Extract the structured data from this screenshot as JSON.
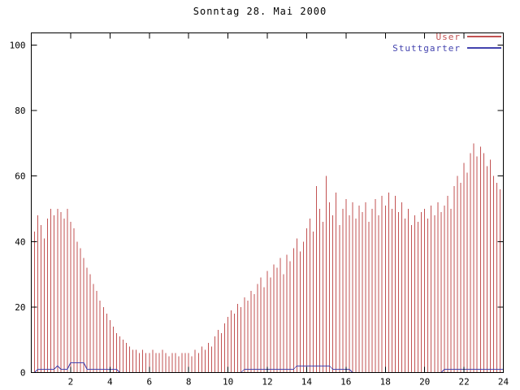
{
  "title": "Sonntag 28. Mai 2000",
  "colors": {
    "background": "#ffffff",
    "axis": "#000000",
    "user": "#c25252",
    "stuttgarter": "#4343ae"
  },
  "chart_data": {
    "type": "bar",
    "title": "Sonntag 28. Mai 2000",
    "xlabel": "",
    "ylabel": "",
    "xlim": [
      0,
      24
    ],
    "ylim": [
      0,
      100
    ],
    "x_ticks": [
      2,
      4,
      6,
      8,
      10,
      12,
      14,
      16,
      18,
      20,
      22,
      24
    ],
    "y_ticks": [
      0,
      20,
      40,
      60,
      80,
      100
    ],
    "grid": false,
    "legend_position": "top-right",
    "x_step_minutes": 10,
    "series": [
      {
        "name": "User",
        "style": "impulses",
        "color": "#c25252",
        "values": [
          50,
          43,
          48,
          45,
          41,
          47,
          50,
          48,
          50,
          49,
          47,
          50,
          46,
          44,
          40,
          38,
          35,
          32,
          30,
          27,
          25,
          22,
          20,
          18,
          16,
          14,
          12,
          11,
          10,
          9,
          8,
          7,
          7,
          6,
          7,
          6,
          6,
          7,
          6,
          6,
          7,
          6,
          5,
          6,
          6,
          5,
          6,
          6,
          6,
          5,
          7,
          6,
          8,
          7,
          9,
          8,
          11,
          13,
          12,
          15,
          17,
          19,
          18,
          21,
          20,
          23,
          22,
          25,
          24,
          27,
          29,
          26,
          31,
          29,
          33,
          32,
          35,
          30,
          36,
          34,
          38,
          41,
          37,
          40,
          44,
          47,
          43,
          57,
          50,
          46,
          60,
          52,
          48,
          55,
          45,
          50,
          53,
          48,
          52,
          47,
          51,
          49,
          52,
          46,
          50,
          53,
          48,
          54,
          51,
          55,
          50,
          54,
          49,
          52,
          47,
          50,
          45,
          48,
          46,
          49,
          50,
          47,
          51,
          48,
          52,
          49,
          51,
          54,
          50,
          57,
          60,
          58,
          64,
          61,
          67,
          70,
          66,
          69,
          67,
          63,
          65,
          60,
          58,
          56,
          54
        ]
      },
      {
        "name": "Stuttgarter",
        "style": "line",
        "color": "#4343ae",
        "values": [
          0,
          0,
          1,
          1,
          1,
          1,
          1,
          1,
          2,
          1,
          1,
          1,
          3,
          3,
          3,
          3,
          3,
          1,
          1,
          1,
          1,
          1,
          1,
          1,
          1,
          1,
          1,
          0,
          0,
          0,
          0,
          0,
          0,
          0,
          0,
          0,
          0,
          0,
          0,
          0,
          0,
          0,
          0,
          0,
          0,
          0,
          0,
          0,
          0,
          0,
          0,
          0,
          0,
          0,
          0,
          0,
          0,
          0,
          0,
          0,
          0,
          0,
          0,
          0,
          0,
          1,
          1,
          1,
          1,
          1,
          1,
          1,
          1,
          1,
          1,
          1,
          1,
          1,
          1,
          1,
          1,
          2,
          2,
          2,
          2,
          2,
          2,
          2,
          2,
          2,
          2,
          2,
          1,
          1,
          1,
          1,
          1,
          1,
          0,
          0,
          0,
          0,
          0,
          0,
          0,
          0,
          0,
          0,
          0,
          0,
          0,
          0,
          0,
          0,
          0,
          0,
          0,
          0,
          0,
          0,
          0,
          0,
          0,
          0,
          0,
          0,
          1,
          1,
          1,
          1,
          1,
          1,
          1,
          1,
          1,
          1,
          1,
          1,
          1,
          1,
          1,
          1,
          1,
          1,
          1
        ]
      }
    ]
  }
}
